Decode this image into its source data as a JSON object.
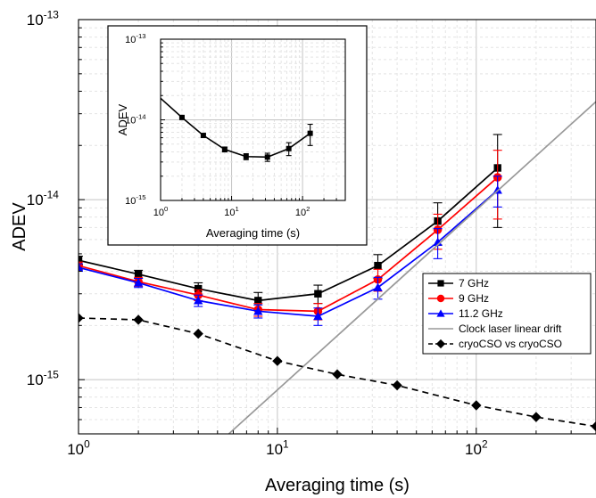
{
  "chart_data": [
    {
      "type": "line",
      "xscale": "log",
      "yscale": "log",
      "xlabel": "Averaging time (s)",
      "ylabel": "ADEV",
      "xlim": [
        1,
        400
      ],
      "ylim": [
        5e-16,
        1e-13
      ],
      "grid": true,
      "legend_position": "bottom-right",
      "x_ticks": [
        {
          "value": 1,
          "base": "10",
          "exp": "0"
        },
        {
          "value": 10,
          "base": "10",
          "exp": "1"
        },
        {
          "value": 100,
          "base": "10",
          "exp": "2"
        }
      ],
      "y_ticks": [
        {
          "value": 1e-15,
          "base": "10",
          "exp": "-15"
        },
        {
          "value": 1e-14,
          "base": "10",
          "exp": "-14"
        },
        {
          "value": 1e-13,
          "base": "10",
          "exp": "-13"
        }
      ],
      "series": [
        {
          "name": "7 GHz",
          "color": "#000000",
          "marker": "square",
          "dash": "",
          "x": [
            1,
            2,
            4,
            8,
            16,
            32,
            64,
            128
          ],
          "y": [
            4.6e-15,
            3.85e-15,
            3.2e-15,
            2.75e-15,
            3e-15,
            4.3e-15,
            7.6e-15,
            1.5e-14
          ],
          "err": [
            2.5e-16,
            2e-16,
            2.5e-16,
            3e-16,
            3.5e-16,
            6.5e-16,
            2e-15,
            8e-15
          ]
        },
        {
          "name": "9 GHz",
          "color": "#ff0000",
          "marker": "circle",
          "dash": "",
          "x": [
            1,
            2,
            4,
            8,
            16,
            32,
            64,
            128
          ],
          "y": [
            4.3e-15,
            3.5e-15,
            2.95e-15,
            2.45e-15,
            2.4e-15,
            3.6e-15,
            6.8e-15,
            1.33e-14
          ],
          "err": [
            2e-16,
            2e-16,
            2e-16,
            2e-16,
            2.5e-16,
            5e-16,
            1.5e-15,
            5.5e-15
          ]
        },
        {
          "name": "11.2 GHz",
          "color": "#0000ff",
          "marker": "triangle",
          "dash": "",
          "x": [
            1,
            2,
            4,
            8,
            16,
            32,
            64,
            128
          ],
          "y": [
            4.2e-15,
            3.45e-15,
            2.75e-15,
            2.4e-15,
            2.25e-15,
            3.25e-15,
            5.8e-15,
            1.13e-14
          ],
          "err": [
            2e-16,
            2e-16,
            2e-16,
            2e-16,
            2.5e-16,
            4.5e-16,
            1.1e-15,
            2.2e-15
          ]
        },
        {
          "name": "Clock laser linear drift",
          "color": "#999999",
          "marker": "none",
          "dash": "",
          "x": [
            5.7,
            400
          ],
          "y": [
            5e-16,
            3.5e-14
          ]
        },
        {
          "name": "cryoCSO vs cryoCSO",
          "color": "#000000",
          "marker": "diamond",
          "dash": "7,5",
          "x": [
            1,
            2,
            4,
            10,
            20,
            40,
            100,
            200,
            400
          ],
          "y": [
            2.2e-15,
            2.15e-15,
            1.8e-15,
            1.27e-15,
            1.07e-15,
            9.3e-16,
            7.2e-16,
            6.2e-16,
            5.5e-16
          ]
        }
      ]
    },
    {
      "type": "line",
      "xscale": "log",
      "yscale": "log",
      "xlabel": "Averaging time (s)",
      "ylabel": "ADEV",
      "xlim": [
        1,
        400
      ],
      "ylim": [
        1e-15,
        1e-13
      ],
      "grid": true,
      "x_ticks": [
        {
          "value": 1,
          "base": "10",
          "exp": "0"
        },
        {
          "value": 10,
          "base": "10",
          "exp": "1"
        },
        {
          "value": 100,
          "base": "10",
          "exp": "2"
        }
      ],
      "y_ticks": [
        {
          "value": 1e-15,
          "base": "10",
          "exp": "-15"
        },
        {
          "value": 1e-14,
          "base": "10",
          "exp": "-14"
        },
        {
          "value": 1e-13,
          "base": "10",
          "exp": "-13"
        }
      ],
      "series": [
        {
          "color": "#000000",
          "marker": "square",
          "dash": "",
          "x": [
            1,
            2,
            4,
            8,
            16,
            32,
            64,
            128
          ],
          "y": [
            1.85e-14,
            1.07e-14,
            6.4e-15,
            4.3e-15,
            3.5e-15,
            3.45e-15,
            4.4e-15,
            6.8e-15
          ],
          "err": [
            0,
            3e-16,
            3e-16,
            3e-16,
            3e-16,
            4e-16,
            8e-16,
            2e-15
          ],
          "markers_from": 1
        }
      ]
    }
  ]
}
